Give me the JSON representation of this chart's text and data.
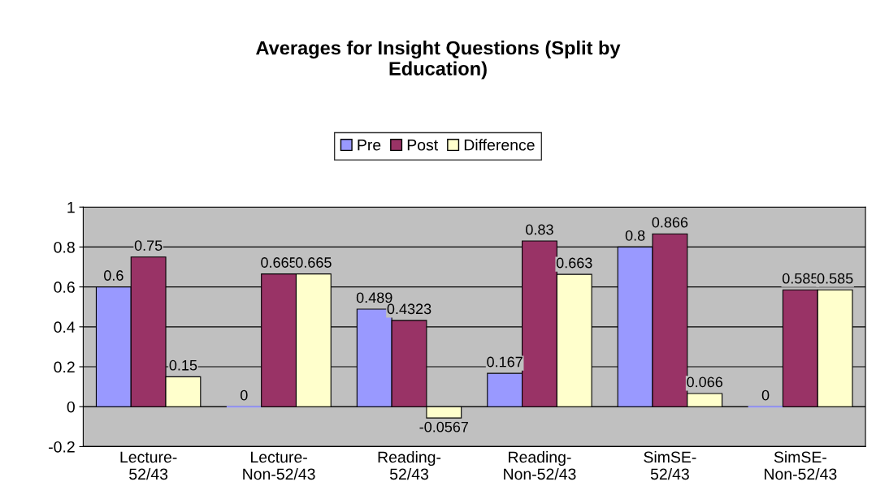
{
  "chart_data": {
    "type": "bar",
    "title": "Averages for Insight Questions (Split by\nEducation)",
    "categories": [
      "Lecture-\n52/43",
      "Lecture-\nNon-52/43",
      "Reading-\n52/43",
      "Reading-\nNon-52/43",
      "SimSE-\n52/43",
      "SimSE-\nNon-52/43"
    ],
    "series": [
      {
        "name": "Pre",
        "color": "#9999ff",
        "values": [
          0.6,
          0,
          0.489,
          0.167,
          0.8,
          0
        ],
        "value_labels": [
          "0.6",
          "0",
          "0.489",
          "0.167",
          "0.8",
          "0"
        ]
      },
      {
        "name": "Post",
        "color": "#993366",
        "values": [
          0.75,
          0.665,
          0.4323,
          0.83,
          0.866,
          0.585
        ],
        "value_labels": [
          "0.75",
          "0.665",
          "0.4323",
          "0.83",
          "0.866",
          "0.585"
        ]
      },
      {
        "name": "Difference",
        "color": "#ffffcc",
        "values": [
          0.15,
          0.665,
          -0.0567,
          0.663,
          0.066,
          0.585
        ],
        "value_labels": [
          "0.15",
          "0.665",
          "-0.0567",
          "0.663",
          "0.066",
          "0.585"
        ]
      }
    ],
    "ylim": [
      -0.2,
      1
    ],
    "yticks": [
      -0.2,
      0,
      0.2,
      0.4,
      0.6,
      0.8,
      1
    ],
    "grid": "y",
    "legend": "top"
  }
}
